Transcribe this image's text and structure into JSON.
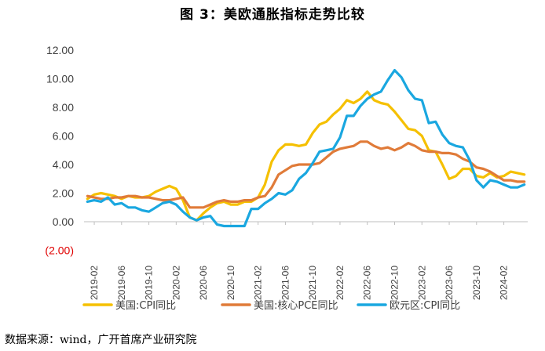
{
  "title": "图 3：美欧通胀指标走势比较",
  "source": "数据来源：wind，广开首席产业研究院",
  "chart_data": {
    "type": "line",
    "ylim": [
      -2,
      12
    ],
    "ytick_labels": [
      "(2.00)",
      "0.00",
      "2.00",
      "4.00",
      "6.00",
      "8.00",
      "10.00",
      "12.00"
    ],
    "ytick_values": [
      -2,
      0,
      2,
      4,
      6,
      8,
      10,
      12
    ],
    "x_tick_labels": [
      "2019-02",
      "2019-06",
      "2019-10",
      "2020-02",
      "2020-06",
      "2020-10",
      "2021-02",
      "2021-06",
      "2021-10",
      "2022-02",
      "2022-06",
      "2022-10",
      "2023-02",
      "2023-06",
      "2023-10",
      "2024-02"
    ],
    "x_start": "2019-01",
    "x_end": "2024-05",
    "series": [
      {
        "name": "美国:CPI同比",
        "color": "#f5c000",
        "values": [
          1.6,
          1.9,
          2.0,
          1.9,
          1.8,
          1.6,
          1.8,
          1.7,
          1.7,
          1.8,
          2.1,
          2.3,
          2.5,
          2.3,
          1.5,
          0.3,
          0.1,
          0.6,
          1.0,
          1.3,
          1.4,
          1.2,
          1.2,
          1.4,
          1.4,
          1.7,
          2.6,
          4.2,
          5.0,
          5.4,
          5.4,
          5.3,
          5.4,
          6.2,
          6.8,
          7.0,
          7.5,
          7.9,
          8.5,
          8.3,
          8.6,
          9.1,
          8.5,
          8.3,
          8.2,
          7.7,
          7.1,
          6.5,
          6.4,
          6.0,
          5.0,
          4.9,
          4.0,
          3.0,
          3.2,
          3.7,
          3.7,
          3.2,
          3.1,
          3.4,
          3.1,
          3.2,
          3.5,
          3.4,
          3.3
        ]
      },
      {
        "name": "美国:核心PCE同比",
        "color": "#e07b39",
        "values": [
          1.8,
          1.7,
          1.6,
          1.6,
          1.7,
          1.7,
          1.8,
          1.8,
          1.7,
          1.7,
          1.6,
          1.5,
          1.5,
          1.6,
          1.7,
          1.0,
          1.0,
          1.0,
          1.2,
          1.4,
          1.5,
          1.4,
          1.4,
          1.5,
          1.5,
          1.7,
          1.8,
          2.4,
          3.3,
          3.6,
          3.9,
          4.0,
          4.0,
          4.0,
          4.1,
          4.5,
          4.9,
          5.1,
          5.2,
          5.3,
          5.6,
          5.6,
          5.3,
          5.1,
          5.2,
          5.0,
          5.2,
          5.5,
          5.3,
          5.0,
          4.9,
          4.9,
          4.8,
          4.8,
          4.7,
          4.4,
          4.2,
          3.8,
          3.7,
          3.5,
          3.2,
          2.9,
          2.9,
          2.8,
          2.8
        ]
      },
      {
        "name": "欧元区:CPI同比",
        "color": "#1aa7e0",
        "values": [
          1.4,
          1.5,
          1.4,
          1.7,
          1.2,
          1.3,
          1.0,
          1.0,
          0.8,
          0.7,
          1.0,
          1.3,
          1.4,
          1.2,
          0.7,
          0.3,
          0.1,
          0.3,
          0.4,
          -0.2,
          -0.3,
          -0.3,
          -0.3,
          -0.3,
          0.9,
          0.9,
          1.3,
          1.6,
          2.0,
          1.9,
          2.2,
          3.0,
          3.4,
          4.1,
          4.9,
          5.0,
          5.1,
          5.9,
          7.4,
          7.4,
          8.1,
          8.6,
          8.9,
          9.1,
          9.9,
          10.6,
          10.1,
          9.2,
          8.6,
          8.5,
          6.9,
          7.0,
          6.1,
          5.5,
          5.3,
          5.2,
          4.3,
          2.9,
          2.4,
          2.9,
          2.8,
          2.6,
          2.4,
          2.4,
          2.6
        ]
      }
    ]
  }
}
